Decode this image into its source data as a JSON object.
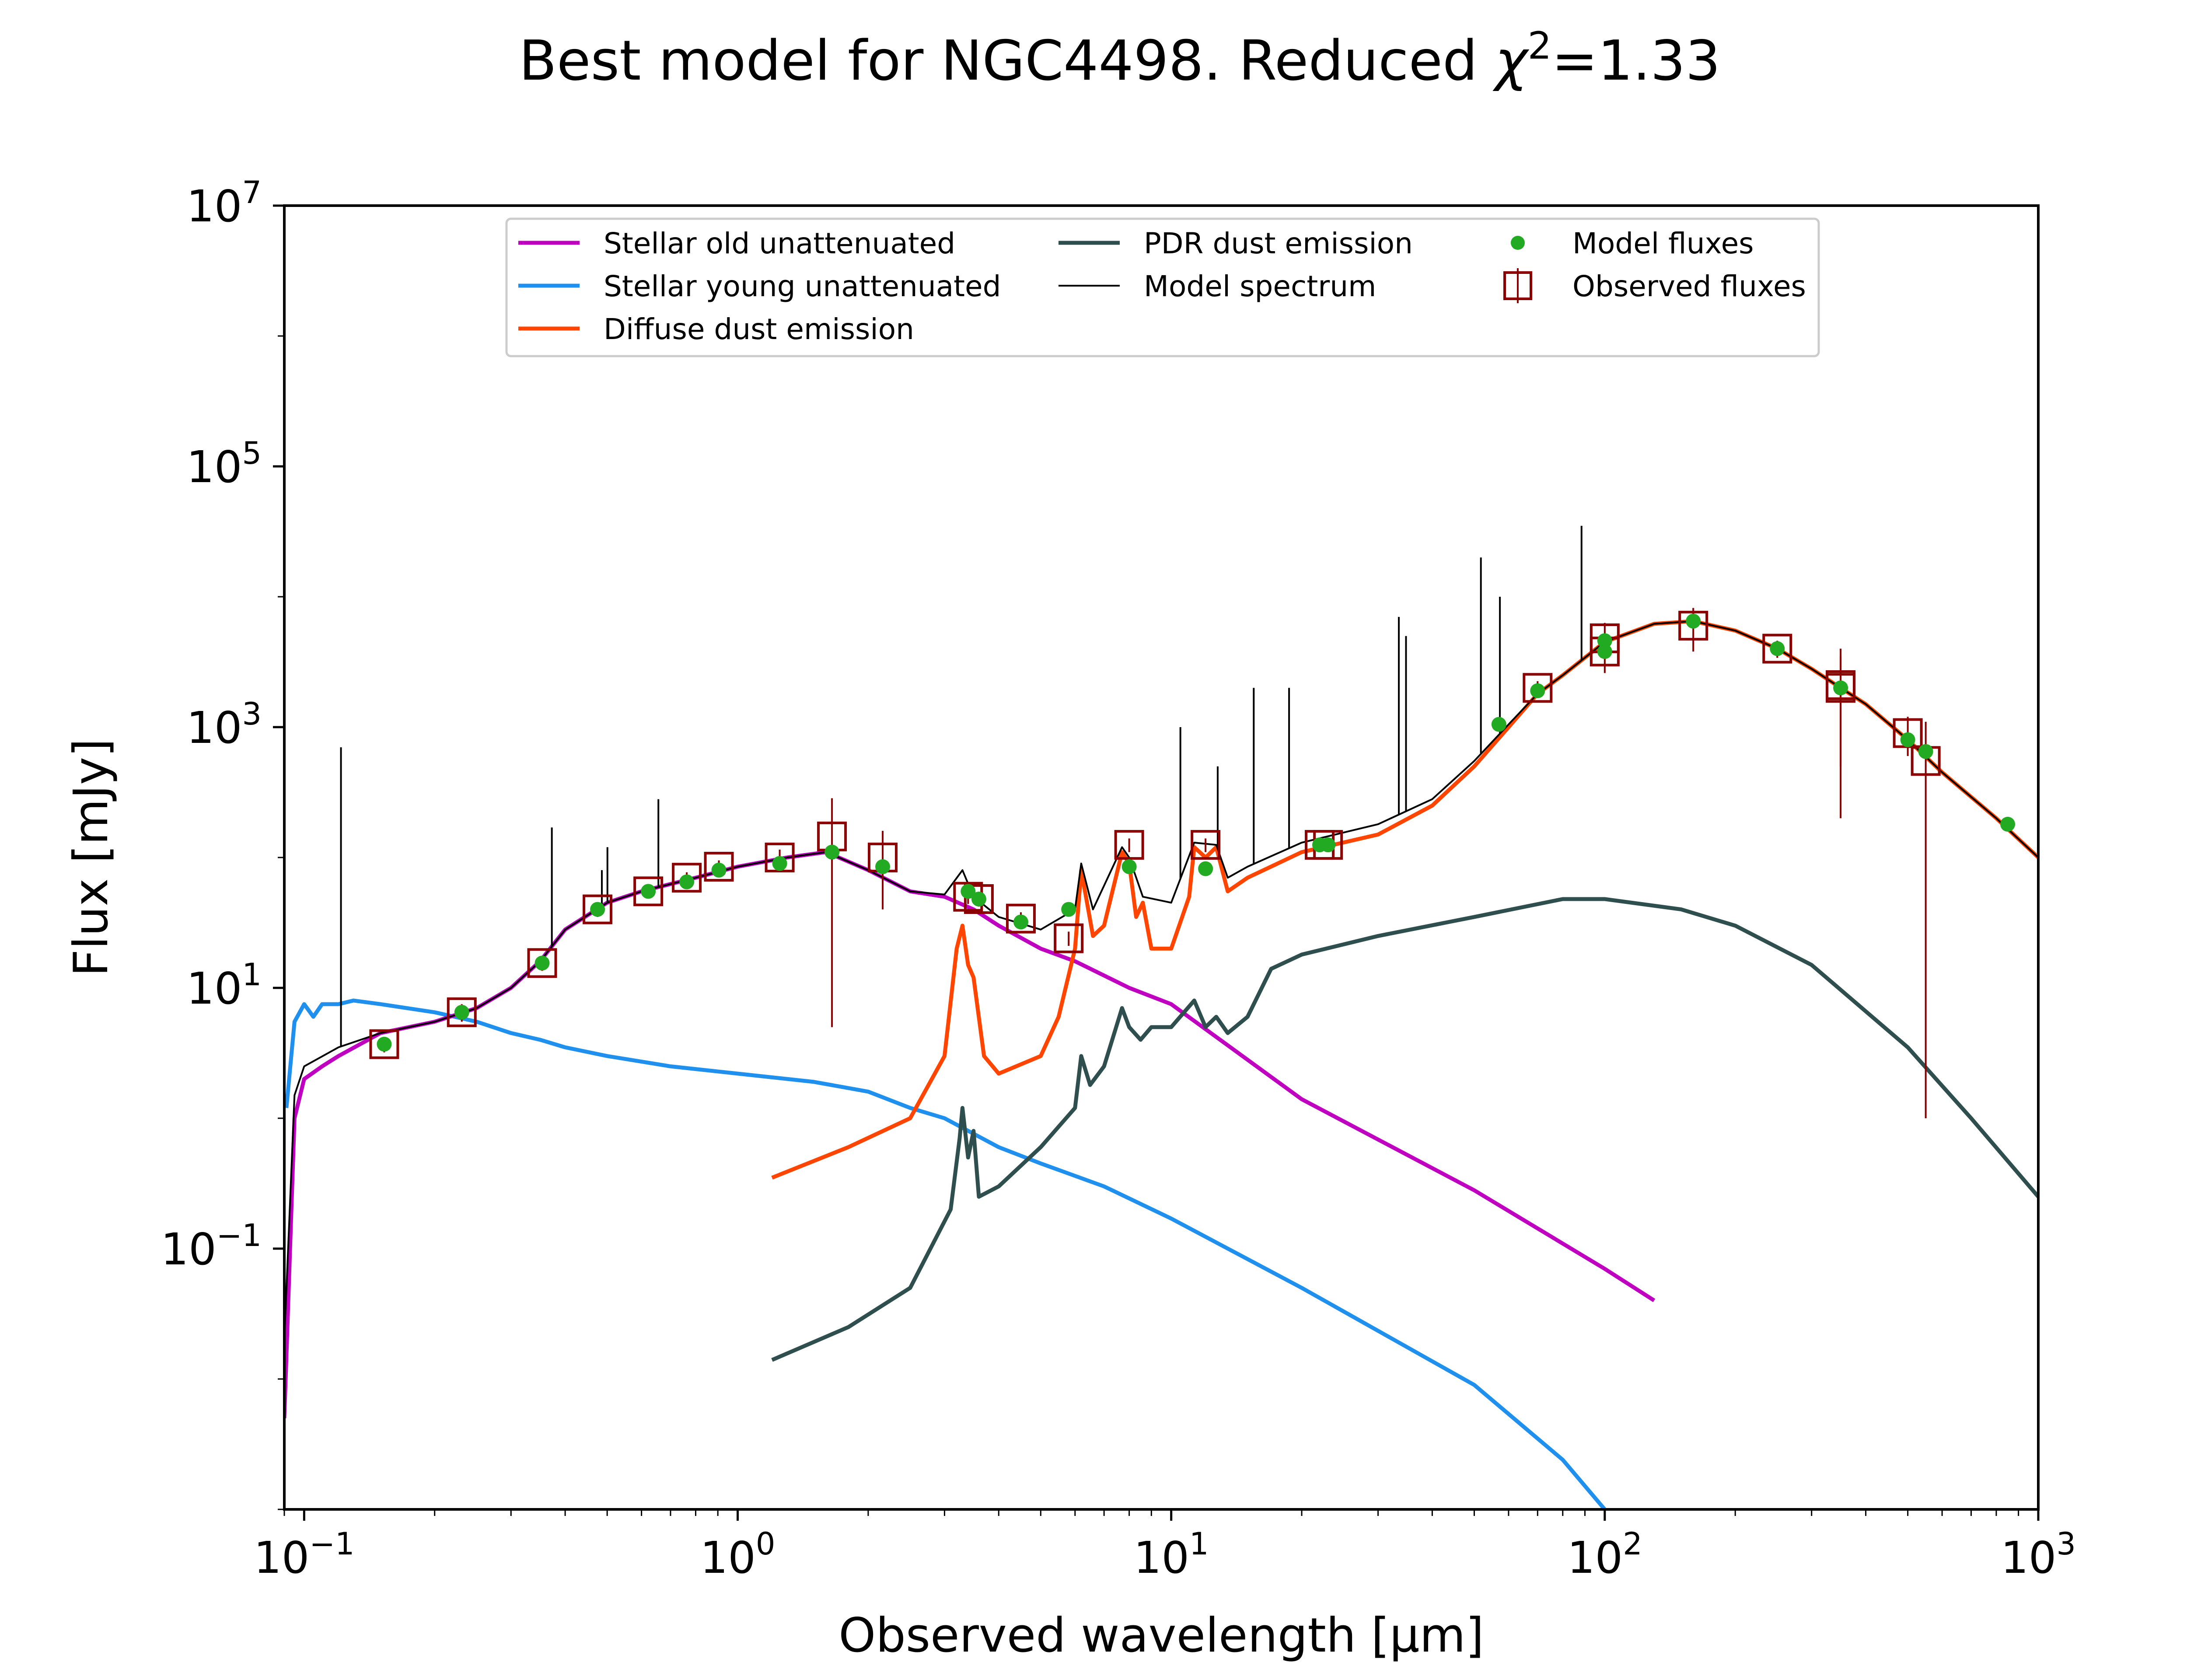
{
  "chart_data": {
    "type": "line",
    "title_prefix": "Best model for NGC4498. Reduced ",
    "title_chi": "χ",
    "title_sup": "2",
    "title_suffix": "=1.33",
    "xlabel": "Observed wavelength [μm]",
    "ylabel": "Flux [mJy]",
    "x_scale": "log",
    "y_scale": "log",
    "xlim": [
      0.09,
      1000
    ],
    "ylim": [
      0.001,
      10000000
    ],
    "grid": false,
    "legend_placement": "top-center",
    "x_ticks": [
      {
        "value": 0.1,
        "base": "10",
        "exp": "−1"
      },
      {
        "value": 1,
        "base": "10",
        "exp": "0"
      },
      {
        "value": 10,
        "base": "10",
        "exp": "1"
      },
      {
        "value": 100,
        "base": "10",
        "exp": "2"
      },
      {
        "value": 1000,
        "base": "10",
        "exp": "3"
      }
    ],
    "y_ticks": [
      {
        "value": 0.1,
        "base": "10",
        "exp": "−1"
      },
      {
        "value": 10,
        "base": "10",
        "exp": "1"
      },
      {
        "value": 1000,
        "base": "10",
        "exp": "3"
      },
      {
        "value": 100000,
        "base": "10",
        "exp": "5"
      },
      {
        "value": 10000000,
        "base": "10",
        "exp": "7"
      }
    ],
    "colors": {
      "stellar_old": "#c000c0",
      "stellar_young": "#1f90ee",
      "diffuse_dust": "#ff4500",
      "pdr_dust": "#2f4f4f",
      "model_spectrum": "#000000",
      "model_fluxes": "#22aa22",
      "observed_fluxes": "#8b0000"
    },
    "legend": [
      {
        "label": "Stellar old unattenuated",
        "key": "stellar_old",
        "kind": "line"
      },
      {
        "label": "Stellar young unattenuated",
        "key": "stellar_young",
        "kind": "line"
      },
      {
        "label": "Diffuse dust emission",
        "key": "diffuse_dust",
        "kind": "line"
      },
      {
        "label": "PDR dust emission",
        "key": "pdr_dust",
        "kind": "line"
      },
      {
        "label": "Model spectrum",
        "key": "model_spectrum",
        "kind": "thinline"
      },
      {
        "label": "Model fluxes",
        "key": "model_fluxes",
        "kind": "dot"
      },
      {
        "label": "Observed fluxes",
        "key": "observed_fluxes",
        "kind": "square"
      }
    ],
    "series": [
      {
        "key": "stellar_young",
        "points": [
          [
            0.091,
            1.2
          ],
          [
            0.095,
            5.5
          ],
          [
            0.1,
            7.5
          ],
          [
            0.105,
            6
          ],
          [
            0.11,
            7.5
          ],
          [
            0.12,
            7.5
          ],
          [
            0.13,
            8
          ],
          [
            0.15,
            7.5
          ],
          [
            0.2,
            6.5
          ],
          [
            0.25,
            5.5
          ],
          [
            0.3,
            4.5
          ],
          [
            0.35,
            4.0
          ],
          [
            0.4,
            3.5
          ],
          [
            0.5,
            3.0
          ],
          [
            0.7,
            2.5
          ],
          [
            1.0,
            2.2
          ],
          [
            1.5,
            1.9
          ],
          [
            2.0,
            1.6
          ],
          [
            2.5,
            1.2
          ],
          [
            3.0,
            1.0
          ],
          [
            4.0,
            0.6
          ],
          [
            5.0,
            0.45
          ],
          [
            7.0,
            0.3
          ],
          [
            10.0,
            0.17
          ],
          [
            20,
            0.05
          ],
          [
            50,
            0.009
          ],
          [
            80,
            0.0024
          ],
          [
            100,
            0.001
          ]
        ]
      },
      {
        "key": "stellar_old",
        "points": [
          [
            0.09,
            0.005
          ],
          [
            0.095,
            1
          ],
          [
            0.1,
            2
          ],
          [
            0.11,
            2.5
          ],
          [
            0.12,
            3
          ],
          [
            0.15,
            4.5
          ],
          [
            0.2,
            5.5
          ],
          [
            0.25,
            7
          ],
          [
            0.3,
            10
          ],
          [
            0.35,
            16
          ],
          [
            0.4,
            28
          ],
          [
            0.5,
            45
          ],
          [
            0.6,
            55
          ],
          [
            0.8,
            70
          ],
          [
            1.0,
            85
          ],
          [
            1.3,
            100
          ],
          [
            1.6,
            110
          ],
          [
            2.0,
            80
          ],
          [
            2.5,
            55
          ],
          [
            3.0,
            50
          ],
          [
            3.5,
            40
          ],
          [
            4.0,
            30
          ],
          [
            5.0,
            20
          ],
          [
            6.0,
            16
          ],
          [
            8.0,
            10
          ],
          [
            10,
            7.5
          ],
          [
            20,
            1.4
          ],
          [
            50,
            0.28
          ],
          [
            100,
            0.07
          ],
          [
            130,
            0.04
          ]
        ]
      },
      {
        "key": "diffuse_dust",
        "points": [
          [
            1.2,
            0.35
          ],
          [
            1.8,
            0.6
          ],
          [
            2.5,
            1.0
          ],
          [
            3.0,
            3
          ],
          [
            3.2,
            20
          ],
          [
            3.3,
            30
          ],
          [
            3.4,
            15
          ],
          [
            3.5,
            12
          ],
          [
            3.7,
            3
          ],
          [
            4.0,
            2.2
          ],
          [
            5.0,
            3
          ],
          [
            5.5,
            6
          ],
          [
            6.0,
            20
          ],
          [
            6.2,
            80
          ],
          [
            6.6,
            25
          ],
          [
            7.0,
            30
          ],
          [
            7.7,
            110
          ],
          [
            8.0,
            90
          ],
          [
            8.3,
            35
          ],
          [
            8.6,
            45
          ],
          [
            9.0,
            20
          ],
          [
            10,
            20
          ],
          [
            11,
            50
          ],
          [
            11.3,
            120
          ],
          [
            12,
            100
          ],
          [
            12.7,
            120
          ],
          [
            13.5,
            55
          ],
          [
            15,
            70
          ],
          [
            20,
            110
          ],
          [
            30,
            150
          ],
          [
            40,
            250
          ],
          [
            50,
            500
          ],
          [
            60,
            1000
          ],
          [
            70,
            1800
          ],
          [
            80,
            2500
          ],
          [
            100,
            4500
          ],
          [
            130,
            6200
          ],
          [
            160,
            6500
          ],
          [
            200,
            5500
          ],
          [
            250,
            4000
          ],
          [
            300,
            2800
          ],
          [
            350,
            2000
          ],
          [
            400,
            1500
          ],
          [
            500,
            800
          ],
          [
            600,
            450
          ],
          [
            800,
            200
          ],
          [
            1000,
            100
          ]
        ]
      },
      {
        "key": "pdr_dust",
        "points": [
          [
            1.2,
            0.014
          ],
          [
            1.8,
            0.025
          ],
          [
            2.5,
            0.05
          ],
          [
            3.1,
            0.2
          ],
          [
            3.25,
            0.7
          ],
          [
            3.3,
            1.2
          ],
          [
            3.4,
            0.5
          ],
          [
            3.5,
            0.8
          ],
          [
            3.6,
            0.25
          ],
          [
            4.0,
            0.3
          ],
          [
            5.0,
            0.6
          ],
          [
            6.0,
            1.2
          ],
          [
            6.2,
            3
          ],
          [
            6.5,
            1.8
          ],
          [
            7.0,
            2.5
          ],
          [
            7.7,
            7
          ],
          [
            8.0,
            5
          ],
          [
            8.5,
            4
          ],
          [
            9.0,
            5
          ],
          [
            10,
            5
          ],
          [
            11.3,
            8
          ],
          [
            12,
            5
          ],
          [
            12.7,
            6
          ],
          [
            13.5,
            4.5
          ],
          [
            15,
            6
          ],
          [
            17,
            14
          ],
          [
            20,
            18
          ],
          [
            30,
            25
          ],
          [
            50,
            35
          ],
          [
            80,
            48
          ],
          [
            100,
            48
          ],
          [
            150,
            40
          ],
          [
            200,
            30
          ],
          [
            300,
            15
          ],
          [
            500,
            3.5
          ],
          [
            700,
            1.0
          ],
          [
            1000,
            0.25
          ]
        ]
      },
      {
        "key": "model_spectrum",
        "points": [
          [
            0.09,
            0.02
          ],
          [
            0.095,
            1.5
          ],
          [
            0.1,
            2.5
          ],
          [
            0.12,
            3.5
          ],
          [
            0.15,
            4.5
          ],
          [
            0.2,
            5.5
          ],
          [
            0.25,
            7
          ],
          [
            0.3,
            10
          ],
          [
            0.35,
            16
          ],
          [
            0.4,
            28
          ],
          [
            0.5,
            45
          ],
          [
            0.6,
            55
          ],
          [
            0.8,
            70
          ],
          [
            1.0,
            85
          ],
          [
            1.3,
            100
          ],
          [
            1.6,
            110
          ],
          [
            2.0,
            80
          ],
          [
            2.5,
            55
          ],
          [
            3.0,
            52
          ],
          [
            3.3,
            80
          ],
          [
            3.5,
            50
          ],
          [
            4.0,
            35
          ],
          [
            5.0,
            28
          ],
          [
            6.0,
            40
          ],
          [
            6.2,
            90
          ],
          [
            6.6,
            40
          ],
          [
            7.7,
            120
          ],
          [
            8.0,
            100
          ],
          [
            8.6,
            50
          ],
          [
            10,
            45
          ],
          [
            11.3,
            130
          ],
          [
            12.7,
            125
          ],
          [
            13.5,
            70
          ],
          [
            15,
            85
          ],
          [
            20,
            130
          ],
          [
            30,
            180
          ],
          [
            40,
            280
          ],
          [
            50,
            550
          ],
          [
            60,
            1050
          ],
          [
            70,
            1800
          ],
          [
            80,
            2500
          ],
          [
            100,
            4500
          ],
          [
            130,
            6200
          ],
          [
            160,
            6500
          ],
          [
            200,
            5500
          ],
          [
            250,
            4000
          ],
          [
            300,
            2800
          ],
          [
            350,
            2000
          ],
          [
            400,
            1500
          ],
          [
            500,
            800
          ],
          [
            600,
            450
          ],
          [
            800,
            200
          ],
          [
            1000,
            100
          ]
        ]
      }
    ],
    "emission_lines": [
      {
        "x": 0.1216,
        "peak": 700
      },
      {
        "x": 0.3727,
        "peak": 170
      },
      {
        "x": 0.4861,
        "peak": 80
      },
      {
        "x": 0.5007,
        "peak": 120
      },
      {
        "x": 0.6563,
        "peak": 280
      },
      {
        "x": 10.5,
        "peak": 1000
      },
      {
        "x": 12.8,
        "peak": 500
      },
      {
        "x": 15.5,
        "peak": 2000
      },
      {
        "x": 18.7,
        "peak": 2000
      },
      {
        "x": 33.5,
        "peak": 7000
      },
      {
        "x": 34.8,
        "peak": 5000
      },
      {
        "x": 51.8,
        "peak": 20000
      },
      {
        "x": 57.3,
        "peak": 10000
      },
      {
        "x": 88.4,
        "peak": 35000
      },
      {
        "x": 157.7,
        "peak": 7000
      }
    ],
    "model_fluxes": [
      [
        0.153,
        3.7
      ],
      [
        0.231,
        6.5
      ],
      [
        0.354,
        15.5
      ],
      [
        0.475,
        40
      ],
      [
        0.622,
        55
      ],
      [
        0.763,
        65
      ],
      [
        0.905,
        80
      ],
      [
        1.25,
        90
      ],
      [
        1.65,
        110
      ],
      [
        2.16,
        85
      ],
      [
        3.4,
        55
      ],
      [
        3.6,
        48
      ],
      [
        4.5,
        32
      ],
      [
        5.8,
        40
      ],
      [
        8.0,
        85
      ],
      [
        12.0,
        82
      ],
      [
        22,
        125
      ],
      [
        23,
        125
      ],
      [
        57,
        1050
      ],
      [
        70,
        1900
      ],
      [
        100,
        4600
      ],
      [
        100,
        3800
      ],
      [
        160,
        6500
      ],
      [
        250,
        4000
      ],
      [
        350,
        2000
      ],
      [
        500,
        800
      ],
      [
        550,
        650
      ],
      [
        850,
        180
      ]
    ],
    "observed_fluxes": [
      [
        0.153,
        3.7,
        0.5
      ],
      [
        0.231,
        6.5,
        1
      ],
      [
        0.354,
        15.5,
        2
      ],
      [
        0.475,
        40,
        5
      ],
      [
        0.622,
        55,
        6
      ],
      [
        0.763,
        70,
        7
      ],
      [
        0.905,
        85,
        10
      ],
      [
        1.25,
        100,
        15
      ],
      [
        1.65,
        145,
        140
      ],
      [
        2.16,
        100,
        60
      ],
      [
        3.4,
        50,
        6
      ],
      [
        3.6,
        48,
        6
      ],
      [
        4.5,
        34,
        4
      ],
      [
        5.8,
        24,
        3
      ],
      [
        8.0,
        125,
        15
      ],
      [
        12.0,
        125,
        15
      ],
      [
        22,
        125,
        15
      ],
      [
        23,
        125,
        15
      ],
      [
        70,
        2000,
        250
      ],
      [
        100,
        4800,
        1500
      ],
      [
        100,
        3800,
        1200
      ],
      [
        160,
        6000,
        2200
      ],
      [
        250,
        4000,
        600
      ],
      [
        350,
        2000,
        1500
      ],
      [
        350,
        2100,
        1900
      ],
      [
        500,
        900,
        300
      ],
      [
        550,
        550,
        549
      ]
    ]
  }
}
